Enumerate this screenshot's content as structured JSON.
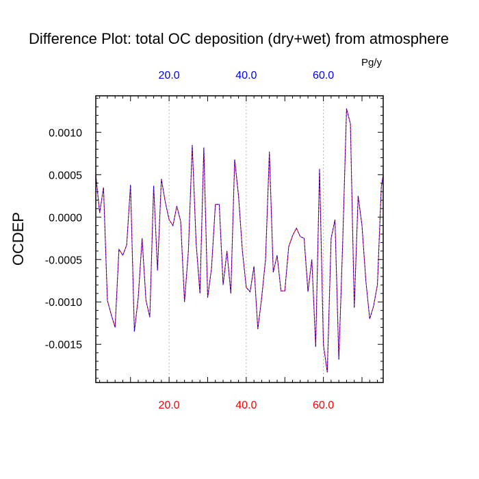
{
  "chart_data": {
    "type": "line",
    "title": "Difference Plot: total OC deposition (dry+wet) from atmosphere",
    "units": "Pg/y",
    "ylabel": "OCDEP",
    "xlabel": "",
    "xlim": [
      1,
      75.5
    ],
    "ylim": [
      -0.00195,
      0.00143
    ],
    "yticks": [
      {
        "value": 0.001,
        "label": "0.0010"
      },
      {
        "value": 0.0005,
        "label": "0.0005"
      },
      {
        "value": 0.0,
        "label": "0.0000"
      },
      {
        "value": -0.0005,
        "label": "-0.0005"
      },
      {
        "value": -0.001,
        "label": "-0.0010"
      },
      {
        "value": -0.0015,
        "label": "-0.0015"
      }
    ],
    "xticks_bottom": [
      {
        "value": 20,
        "label": "20.0"
      },
      {
        "value": 40,
        "label": "40.0"
      },
      {
        "value": 60,
        "label": "60.0"
      }
    ],
    "xticks_top": [
      {
        "value": 20,
        "label": "20.0"
      },
      {
        "value": 40,
        "label": "40.0"
      },
      {
        "value": 60,
        "label": "60.0"
      }
    ],
    "grid": "vertical dashed at major x ticks",
    "colors": {
      "bottom_ticks": "#ff0000",
      "top_ticks": "#0000ff",
      "series_a": "#ff0000",
      "series_b": "#0000ff",
      "grid": "#b4b4b4"
    },
    "x": [
      1,
      2,
      3,
      4,
      5,
      6,
      7,
      8,
      9,
      10,
      11,
      12,
      13,
      14,
      15,
      16,
      17,
      18,
      19,
      20,
      21,
      22,
      23,
      24,
      25,
      26,
      27,
      28,
      29,
      30,
      31,
      32,
      33,
      34,
      35,
      36,
      37,
      38,
      39,
      40,
      41,
      42,
      43,
      44,
      45,
      46,
      47,
      48,
      49,
      50,
      51,
      52,
      53,
      54,
      55,
      56,
      57,
      58,
      59,
      60,
      61,
      62,
      63,
      64,
      65,
      66,
      67,
      68,
      69,
      70,
      71,
      72,
      73,
      74,
      75,
      75.5
    ],
    "series": [
      {
        "name": "series-red",
        "values": [
          0.0005,
          5e-05,
          0.00035,
          -0.00098,
          -0.00115,
          -0.0013,
          -0.00038,
          -0.00045,
          -0.00033,
          0.00038,
          -0.00135,
          -0.00095,
          -0.00025,
          -0.00098,
          -0.00118,
          0.00037,
          -0.00063,
          0.00045,
          0.00018,
          -3e-05,
          -0.0001,
          0.00013,
          -5e-05,
          -0.001,
          -0.0004,
          0.00085,
          -0.0003,
          -0.0009,
          0.00082,
          -0.00095,
          -0.0006,
          0.00015,
          0.00015,
          -0.0008,
          -0.0004,
          -0.0009,
          0.00068,
          0.00025,
          -0.0004,
          -0.00083,
          -0.00088,
          -0.00058,
          -0.00132,
          -0.00095,
          -0.0005,
          0.00077,
          -0.00065,
          -0.00045,
          -0.00087,
          -0.00087,
          -0.00035,
          -0.00022,
          -0.00013,
          -0.00023,
          -0.00025,
          -0.00088,
          -0.0005,
          -0.00153,
          0.00057,
          -0.0015,
          -0.00183,
          -0.00025,
          -3e-05,
          -0.00168,
          -0.0003,
          0.00128,
          0.0011,
          -0.00107,
          0.00025,
          -0.0001,
          -0.00075,
          -0.0012,
          -0.00105,
          -0.0008,
          0.00035,
          0.0005
        ]
      },
      {
        "name": "series-blue",
        "values": [
          0.0005,
          5e-05,
          0.00035,
          -0.00098,
          -0.00115,
          -0.0013,
          -0.00038,
          -0.00045,
          -0.00033,
          0.00038,
          -0.00135,
          -0.00095,
          -0.00025,
          -0.00098,
          -0.00118,
          0.00037,
          -0.00063,
          0.00045,
          0.00018,
          -3e-05,
          -0.0001,
          0.00013,
          -5e-05,
          -0.001,
          -0.0004,
          0.00085,
          -0.0003,
          -0.0009,
          0.00082,
          -0.00095,
          -0.0006,
          0.00015,
          0.00015,
          -0.0008,
          -0.0004,
          -0.0009,
          0.00068,
          0.00025,
          -0.0004,
          -0.00083,
          -0.00088,
          -0.00058,
          -0.00132,
          -0.00095,
          -0.0005,
          0.00077,
          -0.00065,
          -0.00045,
          -0.00087,
          -0.00087,
          -0.00035,
          -0.00022,
          -0.00013,
          -0.00023,
          -0.00025,
          -0.00088,
          -0.0005,
          -0.00153,
          0.00057,
          -0.0015,
          -0.00183,
          -0.00025,
          -3e-05,
          -0.00168,
          -0.0003,
          0.00128,
          0.0011,
          -0.00107,
          0.00025,
          -0.0001,
          -0.00075,
          -0.0012,
          -0.00105,
          -0.0008,
          0.00035,
          0.0005
        ]
      }
    ]
  }
}
